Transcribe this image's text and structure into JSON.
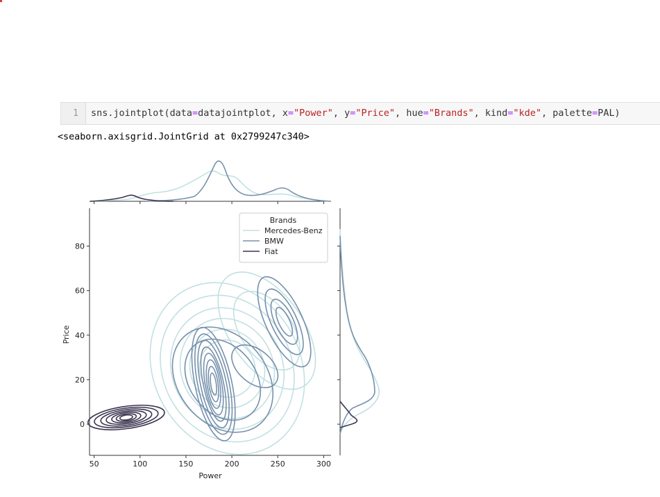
{
  "cell": {
    "line_number": "1",
    "code": {
      "p1": "sns.jointplot(data",
      "p2": "=",
      "p3": "datajointplot, x",
      "p4": "=",
      "p5": "\"Power\"",
      "p6": ", y",
      "p7": "=",
      "p8": "\"Price\"",
      "p9": ", hue",
      "p10": "=",
      "p11": "\"Brands\"",
      "p12": ", kind",
      "p13": "=",
      "p14": "\"kde\"",
      "p15": ", palette",
      "p16": "=",
      "p17": "PAL)"
    },
    "output_text": "<seaborn.axisgrid.JointGrid at 0x2799247c340>"
  },
  "chart_data": {
    "type": "kde-jointplot",
    "title": "",
    "xlabel": "Power",
    "ylabel": "Price",
    "xlim": [
      45,
      308
    ],
    "ylim": [
      -14,
      97
    ],
    "xticks": [
      50,
      100,
      150,
      200,
      250,
      300
    ],
    "yticks": [
      0,
      20,
      40,
      60,
      80
    ],
    "grid": false,
    "legend": {
      "title": "Brands",
      "placement": "upper-right",
      "entries": [
        "Mercedes-Benz",
        "BMW",
        "Fiat"
      ]
    },
    "series": [
      {
        "name": "Mercedes-Benz",
        "color": "#c2e0e2",
        "contour_centers": [
          [
            182,
            18
          ],
          [
            240,
            38
          ],
          [
            260,
            62
          ]
        ],
        "power_density_peaks": [
          190,
          250
        ],
        "price_density_peak": 15
      },
      {
        "name": "BMW",
        "color": "#7690ac",
        "contour_centers": [
          [
            175,
            15
          ],
          [
            188,
            30
          ],
          [
            255,
            46
          ]
        ],
        "power_density_peaks": [
          185,
          255
        ],
        "price_density_peak": 18
      },
      {
        "name": "Fiat",
        "color": "#3b3450",
        "contour_centers": [
          [
            75,
            2
          ],
          [
            90,
            4
          ]
        ],
        "power_density_peaks": [
          90
        ],
        "price_density_peak": 3
      }
    ]
  }
}
